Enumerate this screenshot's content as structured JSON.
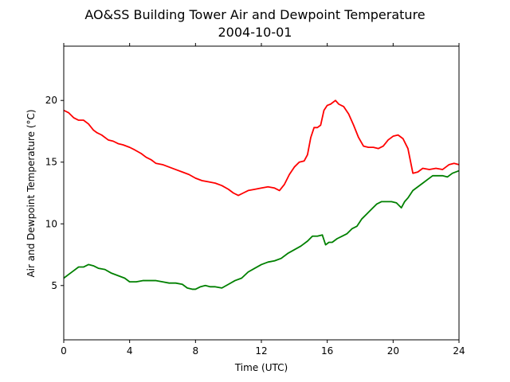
{
  "chart_data": {
    "type": "line",
    "title": "AO&SS Building Tower Air and Dewpoint Temperature",
    "subtitle": "2004-10-01",
    "xlabel": "Time (UTC)",
    "ylabel": "Air and Dewpoint Temperature (°C)",
    "xlim": [
      0,
      24
    ],
    "ylim": [
      0.6,
      24.4
    ],
    "xticks": [
      0,
      4,
      8,
      12,
      16,
      20,
      24
    ],
    "yticks": [
      5,
      10,
      15,
      20
    ],
    "grid": false,
    "legend": "none",
    "series": [
      {
        "color": "#ff0000",
        "x": [
          0,
          0.3,
          0.6,
          0.9,
          1.2,
          1.5,
          1.8,
          2.0,
          2.3,
          2.7,
          3.0,
          3.3,
          3.6,
          4.0,
          4.3,
          4.7,
          5.0,
          5.3,
          5.6,
          6.0,
          6.4,
          6.8,
          7.2,
          7.6,
          8.0,
          8.4,
          8.8,
          9.2,
          9.6,
          10.0,
          10.3,
          10.6,
          10.9,
          11.2,
          11.6,
          12.0,
          12.4,
          12.8,
          13.1,
          13.4,
          13.7,
          14.0,
          14.3,
          14.6,
          14.8,
          15.0,
          15.2,
          15.4,
          15.6,
          15.8,
          16.0,
          16.2,
          16.5,
          16.7,
          17.0,
          17.3,
          17.6,
          17.9,
          18.2,
          18.5,
          18.8,
          19.1,
          19.4,
          19.7,
          20.0,
          20.3,
          20.6,
          20.9,
          21.2,
          21.5,
          21.8,
          22.2,
          22.6,
          23.0,
          23.4,
          23.7,
          24.0
        ],
        "values": [
          19.2,
          19.0,
          18.6,
          18.4,
          18.4,
          18.1,
          17.6,
          17.4,
          17.2,
          16.8,
          16.7,
          16.5,
          16.4,
          16.2,
          16.0,
          15.7,
          15.4,
          15.2,
          14.9,
          14.8,
          14.6,
          14.4,
          14.2,
          14.0,
          13.7,
          13.5,
          13.4,
          13.3,
          13.1,
          12.8,
          12.5,
          12.3,
          12.5,
          12.7,
          12.8,
          12.9,
          13.0,
          12.9,
          12.7,
          13.2,
          14.0,
          14.6,
          15.0,
          15.1,
          15.6,
          17.0,
          17.8,
          17.8,
          18.0,
          19.2,
          19.6,
          19.7,
          20.0,
          19.7,
          19.5,
          18.9,
          18.0,
          17.0,
          16.3,
          16.2,
          16.2,
          16.1,
          16.3,
          16.8,
          17.1,
          17.2,
          16.9,
          16.1,
          14.1,
          14.2,
          14.5,
          14.4,
          14.5,
          14.4,
          14.8,
          14.9,
          14.8
        ]
      },
      {
        "color": "#008000",
        "x": [
          0,
          0.3,
          0.6,
          0.9,
          1.2,
          1.5,
          1.8,
          2.1,
          2.5,
          2.9,
          3.3,
          3.7,
          4.0,
          4.4,
          4.8,
          5.2,
          5.6,
          6.0,
          6.4,
          6.8,
          7.2,
          7.5,
          7.8,
          8.0,
          8.3,
          8.6,
          8.9,
          9.2,
          9.6,
          10.0,
          10.4,
          10.8,
          11.2,
          11.6,
          12.0,
          12.4,
          12.8,
          13.2,
          13.6,
          14.0,
          14.4,
          14.8,
          15.1,
          15.4,
          15.7,
          15.9,
          16.1,
          16.3,
          16.6,
          16.9,
          17.2,
          17.5,
          17.8,
          18.1,
          18.4,
          18.7,
          19.0,
          19.3,
          19.6,
          19.9,
          20.2,
          20.5,
          20.7,
          20.9,
          21.2,
          21.5,
          21.8,
          22.1,
          22.4,
          22.7,
          23.0,
          23.3,
          23.6,
          24.0
        ],
        "values": [
          5.6,
          5.9,
          6.2,
          6.5,
          6.5,
          6.7,
          6.6,
          6.4,
          6.3,
          6.0,
          5.8,
          5.6,
          5.3,
          5.3,
          5.4,
          5.4,
          5.4,
          5.3,
          5.2,
          5.2,
          5.1,
          4.8,
          4.7,
          4.7,
          4.9,
          5.0,
          4.9,
          4.9,
          4.8,
          5.1,
          5.4,
          5.6,
          6.1,
          6.4,
          6.7,
          6.9,
          7.0,
          7.2,
          7.6,
          7.9,
          8.2,
          8.6,
          9.0,
          9.0,
          9.1,
          8.3,
          8.5,
          8.5,
          8.8,
          9.0,
          9.2,
          9.6,
          9.8,
          10.4,
          10.8,
          11.2,
          11.6,
          11.8,
          11.8,
          11.8,
          11.7,
          11.3,
          11.8,
          12.1,
          12.7,
          13.0,
          13.3,
          13.6,
          13.9,
          13.9,
          13.9,
          13.8,
          14.1,
          14.3
        ]
      }
    ]
  }
}
